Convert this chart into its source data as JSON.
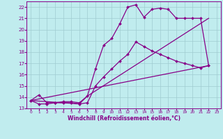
{
  "xlabel": "Windchill (Refroidissement éolien,°C)",
  "bg_color": "#c0ecee",
  "grid_color": "#a0ccd0",
  "line_color": "#880088",
  "xlim": [
    -0.5,
    23.5
  ],
  "ylim": [
    13,
    22.5
  ],
  "xticks": [
    0,
    1,
    2,
    3,
    4,
    5,
    6,
    7,
    8,
    9,
    10,
    11,
    12,
    13,
    14,
    15,
    16,
    17,
    18,
    19,
    20,
    21,
    22,
    23
  ],
  "yticks": [
    13,
    14,
    15,
    16,
    17,
    18,
    19,
    20,
    21,
    22
  ],
  "series1_x": [
    0,
    1,
    2,
    3,
    4,
    5,
    6,
    7,
    8,
    9,
    10,
    11,
    12,
    13,
    14,
    15,
    16,
    17,
    18,
    19,
    20,
    21,
    22
  ],
  "series1_y": [
    13.7,
    14.2,
    13.5,
    13.5,
    13.6,
    13.6,
    13.5,
    14.1,
    16.5,
    18.6,
    19.2,
    20.5,
    22.0,
    22.2,
    21.1,
    21.8,
    21.9,
    21.8,
    21.0,
    21.0,
    21.0,
    21.0,
    16.8
  ],
  "series2_x": [
    0,
    1,
    2,
    3,
    4,
    5,
    6,
    7,
    8,
    9,
    10,
    11,
    12,
    13,
    14,
    15,
    16,
    17,
    18,
    19,
    20,
    21,
    22
  ],
  "series2_y": [
    13.7,
    13.4,
    13.4,
    13.5,
    13.5,
    13.5,
    13.4,
    13.5,
    15.0,
    15.8,
    16.5,
    17.2,
    17.8,
    18.9,
    18.5,
    18.1,
    17.8,
    17.5,
    17.2,
    17.0,
    16.8,
    16.6,
    16.8
  ],
  "series3_x": [
    0,
    6,
    7,
    22
  ],
  "series3_y": [
    13.7,
    13.4,
    14.1,
    21.0
  ],
  "series4_x": [
    0,
    22
  ],
  "series4_y": [
    13.7,
    16.8
  ]
}
